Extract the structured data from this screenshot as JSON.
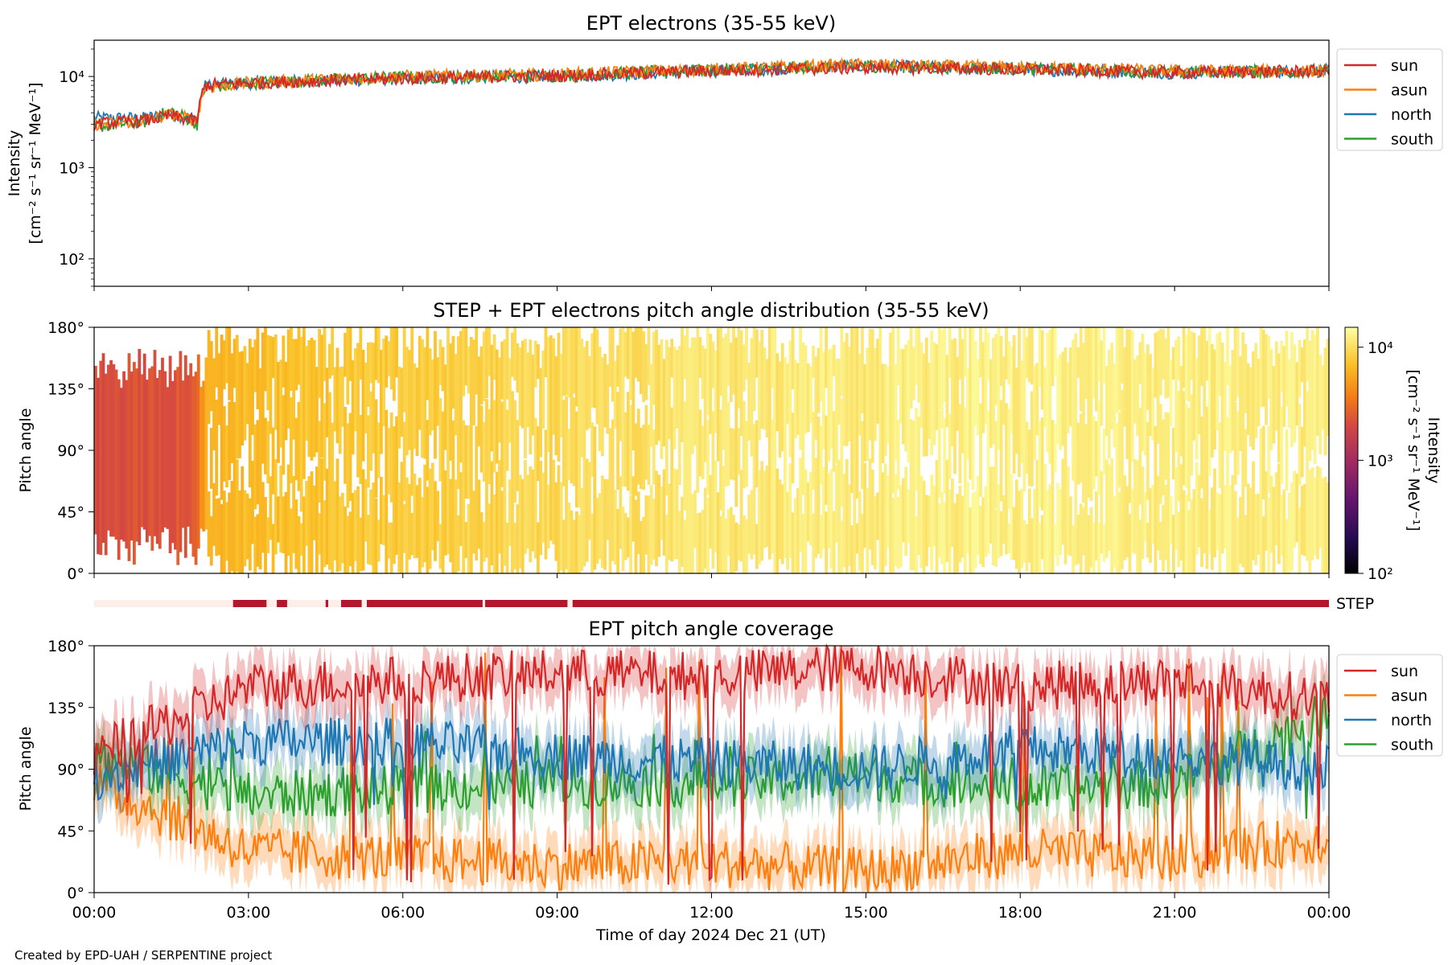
{
  "footer": "Created by EPD-UAH / SERPENTINE project",
  "colors": {
    "sun": "#d62728",
    "asun": "#ff7f0e",
    "north": "#1f77b4",
    "south": "#2ca02c",
    "step_bar": "#b2182b",
    "step_bar_light": "#fdeee8"
  },
  "chart_data": [
    {
      "type": "line",
      "title": "EPT electrons (35-55 keV)",
      "ylabel": "Intensity",
      "yunit": "[cm⁻² s⁻¹ sr⁻¹ MeV⁻¹]",
      "yscale": "log",
      "ylim": [
        50,
        25000
      ],
      "yticks": [
        "10²",
        "10³",
        "10⁴"
      ],
      "xlim_hours": [
        0,
        24
      ],
      "legend": {
        "placement": "outside-right",
        "entries": [
          "sun",
          "asun",
          "north",
          "south"
        ]
      },
      "x": [
        "00:00",
        "01:00",
        "01:30",
        "02:00",
        "02:15",
        "03:00",
        "06:00",
        "09:00",
        "12:00",
        "15:00",
        "18:00",
        "21:00",
        "00:00"
      ],
      "series": [
        {
          "name": "sun",
          "values": [
            3000,
            3300,
            3700,
            3200,
            8000,
            8500,
            9500,
            10200,
            11500,
            12500,
            12000,
            11000,
            11500
          ]
        },
        {
          "name": "asun",
          "values": [
            3000,
            3300,
            3800,
            3300,
            7500,
            8500,
            10000,
            10500,
            12000,
            13500,
            12500,
            11500,
            11500
          ]
        },
        {
          "name": "north",
          "values": [
            3500,
            3500,
            3900,
            3400,
            7800,
            8500,
            9500,
            10000,
            11500,
            13000,
            12000,
            11000,
            11500
          ]
        },
        {
          "name": "south",
          "values": [
            2800,
            3200,
            4200,
            3000,
            7500,
            8500,
            9800,
            10200,
            11800,
            13000,
            12200,
            11200,
            11500
          ]
        }
      ]
    },
    {
      "type": "heatmap",
      "title": "STEP + EPT electrons pitch angle distribution (35-55 keV)",
      "ylabel": "Pitch angle",
      "yticks": [
        "0°",
        "45°",
        "90°",
        "135°",
        "180°"
      ],
      "ylim": [
        0,
        180
      ],
      "colorbar": {
        "label": "Intensity",
        "unit": "[cm⁻² s⁻¹ sr⁻¹ MeV⁻¹]",
        "scale": "log",
        "range": [
          100,
          15000
        ],
        "ticks": [
          "10²",
          "10³",
          "10⁴"
        ],
        "colormap": "inferno"
      },
      "intensity_trend": {
        "hours": [
          0,
          2,
          2.2,
          6,
          12,
          18,
          24
        ],
        "values": [
          2000,
          2500,
          6500,
          8000,
          11000,
          12500,
          12000
        ]
      }
    },
    {
      "type": "bar",
      "label": "STEP",
      "description_coverage_hours": [
        [
          2.7,
          3.35
        ],
        [
          3.55,
          3.75
        ],
        [
          4.5,
          4.55
        ],
        [
          4.8,
          5.2
        ],
        [
          5.3,
          7.55
        ],
        [
          7.6,
          9.2
        ],
        [
          9.3,
          24
        ]
      ]
    },
    {
      "type": "line",
      "title": "EPT pitch angle coverage",
      "ylabel": "Pitch angle",
      "xlabel": "Time of day 2024 Dec 21 (UT)",
      "yticks": [
        "0°",
        "45°",
        "90°",
        "135°",
        "180°"
      ],
      "ylim": [
        0,
        180
      ],
      "xticks": [
        "00:00",
        "03:00",
        "06:00",
        "09:00",
        "12:00",
        "15:00",
        "18:00",
        "21:00",
        "00:00"
      ],
      "legend": {
        "placement": "outside-right",
        "entries": [
          "sun",
          "asun",
          "north",
          "south"
        ]
      },
      "x_hours": [
        0,
        3,
        6,
        9,
        12,
        15,
        18,
        21,
        24
      ],
      "series": [
        {
          "name": "sun",
          "values": [
            100,
            150,
            155,
            160,
            158,
            165,
            150,
            155,
            140
          ]
        },
        {
          "name": "asun",
          "values": [
            80,
            30,
            25,
            20,
            22,
            15,
            30,
            25,
            40
          ]
        },
        {
          "name": "north",
          "values": [
            85,
            110,
            110,
            100,
            95,
            90,
            105,
            100,
            90
          ]
        },
        {
          "name": "south",
          "values": [
            100,
            70,
            75,
            80,
            80,
            85,
            75,
            80,
            130
          ]
        }
      ]
    }
  ]
}
